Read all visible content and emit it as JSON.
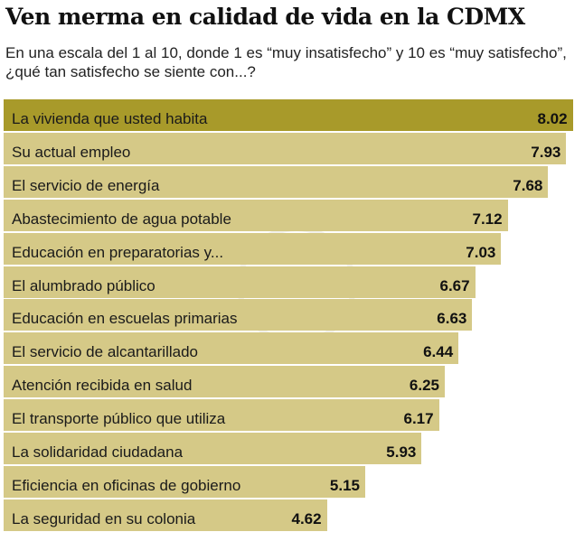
{
  "chart_data": {
    "type": "bar",
    "orientation": "horizontal",
    "title": "Ven merma en calidad de vida en la CDMX",
    "subtitle": "En una escala del 1 al 10, donde 1 es “muy insatisfecho” y 10 es “muy satisfecho”, ¿qué tan satisfecho se siente con...?",
    "categories": [
      "La vivienda que usted habita",
      "Su actual empleo",
      "El servicio de energía",
      "Abastecimiento de agua potable",
      "Educación en preparatorias y...",
      "El alumbrado público",
      "Educación en escuelas primarias",
      "El servicio de alcantarillado",
      "Atención recibida en salud",
      "El transporte público que utiliza",
      "La solidaridad ciudadana",
      "Eficiencia en oficinas de gobierno",
      "La seguridad en su colonia"
    ],
    "values": [
      8.02,
      7.93,
      7.68,
      7.12,
      7.03,
      6.67,
      6.63,
      6.44,
      6.25,
      6.17,
      5.93,
      5.15,
      4.62
    ],
    "value_labels": [
      "8.02",
      "7.93",
      "7.68",
      "7.12",
      "7.03",
      "6.67",
      "6.63",
      "6.44",
      "6.25",
      "6.17",
      "5.93",
      "5.15",
      "4.62"
    ],
    "grid": false,
    "colors": {
      "highlight": "#a89a2a",
      "bar": "#d5c987"
    }
  }
}
